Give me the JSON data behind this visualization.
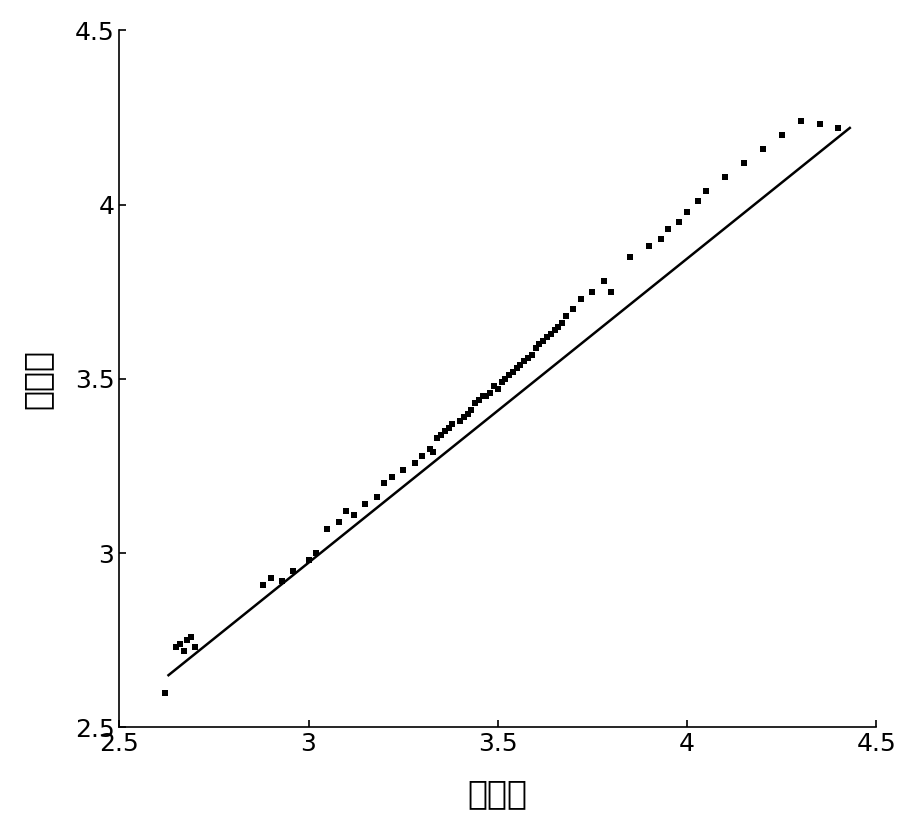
{
  "title": "",
  "xlabel": "实际値",
  "ylabel": "预测値",
  "xlim": [
    2.5,
    4.5
  ],
  "ylim": [
    2.5,
    4.5
  ],
  "xticks": [
    2.5,
    3.0,
    3.5,
    4.0,
    4.5
  ],
  "yticks": [
    2.5,
    3.0,
    3.5,
    4.0,
    4.5
  ],
  "scatter_color": "#000000",
  "line_color": "#000000",
  "marker_size": 22,
  "line_width": 1.8,
  "background_color": "#ffffff",
  "scatter_x": [
    2.65,
    2.66,
    2.67,
    2.68,
    2.69,
    2.7,
    2.65,
    2.62,
    2.88,
    2.9,
    2.93,
    2.96,
    3.0,
    3.02,
    3.05,
    3.08,
    3.1,
    3.12,
    3.15,
    3.18,
    3.2,
    3.22,
    3.25,
    3.28,
    3.3,
    3.32,
    3.33,
    3.34,
    3.35,
    3.36,
    3.37,
    3.38,
    3.4,
    3.41,
    3.42,
    3.43,
    3.44,
    3.45,
    3.46,
    3.47,
    3.48,
    3.49,
    3.5,
    3.51,
    3.52,
    3.53,
    3.54,
    3.55,
    3.56,
    3.57,
    3.58,
    3.59,
    3.6,
    3.61,
    3.62,
    3.63,
    3.64,
    3.65,
    3.66,
    3.67,
    3.68,
    3.7,
    3.72,
    3.75,
    3.78,
    3.8,
    3.85,
    3.9,
    3.93,
    3.95,
    3.98,
    4.0,
    4.03,
    4.05,
    4.1,
    4.15,
    4.2,
    4.25,
    4.3,
    4.35,
    4.4
  ],
  "scatter_y": [
    2.73,
    2.74,
    2.72,
    2.75,
    2.76,
    2.73,
    2.73,
    2.6,
    2.91,
    2.93,
    2.92,
    2.95,
    2.98,
    3.0,
    3.07,
    3.09,
    3.12,
    3.11,
    3.14,
    3.16,
    3.2,
    3.22,
    3.24,
    3.26,
    3.28,
    3.3,
    3.29,
    3.33,
    3.34,
    3.35,
    3.36,
    3.37,
    3.38,
    3.39,
    3.4,
    3.41,
    3.43,
    3.44,
    3.45,
    3.45,
    3.46,
    3.48,
    3.47,
    3.49,
    3.5,
    3.51,
    3.52,
    3.53,
    3.54,
    3.55,
    3.56,
    3.57,
    3.59,
    3.6,
    3.61,
    3.62,
    3.63,
    3.64,
    3.65,
    3.66,
    3.68,
    3.7,
    3.73,
    3.75,
    3.78,
    3.75,
    3.85,
    3.88,
    3.9,
    3.93,
    3.95,
    3.98,
    4.01,
    4.04,
    4.08,
    4.12,
    4.16,
    4.2,
    4.24,
    4.23,
    4.22
  ],
  "fit_x": [
    2.63,
    4.43
  ],
  "fit_y": [
    2.65,
    4.22
  ],
  "xlabel_fontsize": 24,
  "ylabel_fontsize": 24,
  "tick_fontsize": 18
}
